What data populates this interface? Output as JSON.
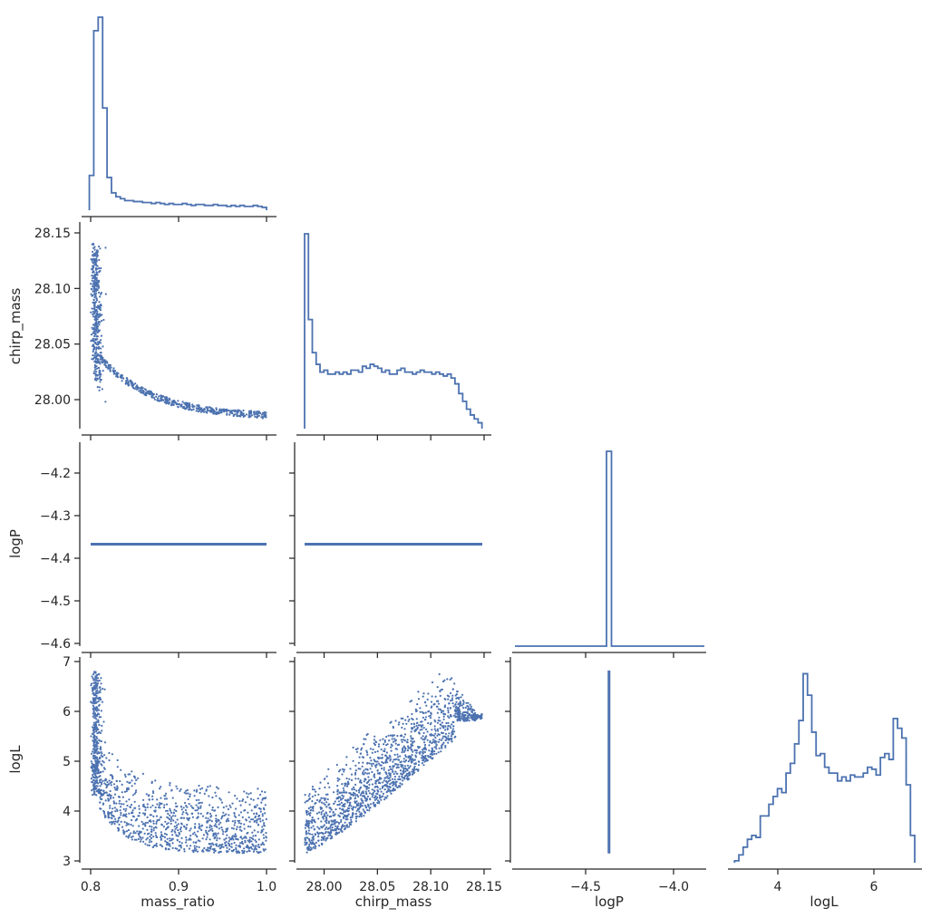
{
  "chart_data": {
    "type": "scatter",
    "layout": "corner-plot",
    "color": "#4c72b0",
    "variables": [
      "mass_ratio",
      "chirp_mass",
      "logP",
      "logL"
    ],
    "axis_labels": {
      "mass_ratio": "mass_ratio",
      "chirp_mass": "chirp_mass",
      "logP": "logP",
      "logL": "logL"
    },
    "ranges": {
      "mass_ratio": [
        0.79,
        1.01
      ],
      "chirp_mass": [
        27.973,
        28.152
      ],
      "logP": [
        -4.612,
        -4.18
      ],
      "logL": [
        2.95,
        7.0
      ]
    },
    "hist_ranges": {
      "logP": [
        -4.92,
        -3.82
      ]
    },
    "ticks": {
      "mass_ratio": {
        "values": [
          0.8,
          0.9,
          1.0
        ],
        "labels": [
          "0.8",
          "0.9",
          "1.0"
        ]
      },
      "chirp_mass": {
        "values": [
          28.0,
          28.05,
          28.1,
          28.15
        ],
        "labels": [
          "28.00",
          "28.05",
          "28.10",
          "28.15"
        ]
      },
      "logP_y": {
        "values": [
          -4.2,
          -4.3,
          -4.4,
          -4.5,
          -4.6
        ],
        "labels": [
          "−4.2",
          "−4.3",
          "−4.4",
          "−4.5",
          "−4.6"
        ]
      },
      "logP_x": {
        "values": [
          -4.5,
          -4.0
        ],
        "labels": [
          "−4.5",
          "−4.0"
        ]
      },
      "logL": {
        "values": [
          3,
          4,
          5,
          6,
          7
        ],
        "labels": [
          "3",
          "4",
          "5",
          "6",
          "7"
        ]
      },
      "logL_x": {
        "values": [
          4,
          6
        ],
        "labels": [
          "4",
          "6"
        ]
      },
      "chirp_mass_y": {
        "values": [
          28.0,
          28.05,
          28.1,
          28.15
        ],
        "labels": [
          "28.00",
          "28.05",
          "28.10",
          "28.15"
        ]
      }
    },
    "diagonal_histograms": {
      "mass_ratio": {
        "bin_edges_range": [
          0.8,
          1.0
        ],
        "counts": [
          0.18,
          0.93,
          1.0,
          0.53,
          0.17,
          0.09,
          0.07,
          0.06,
          0.05,
          0.05,
          0.045,
          0.045,
          0.04,
          0.04,
          0.035,
          0.04,
          0.035,
          0.03,
          0.035,
          0.03,
          0.03,
          0.035,
          0.03,
          0.025,
          0.03,
          0.03,
          0.025,
          0.025,
          0.03,
          0.025,
          0.025,
          0.02,
          0.025,
          0.02,
          0.025,
          0.02,
          0.02,
          0.025,
          0.02,
          0.015
        ]
      },
      "chirp_mass": {
        "bin_edges_range": [
          27.982,
          28.148
        ],
        "counts": [
          1.0,
          0.56,
          0.39,
          0.33,
          0.29,
          0.3,
          0.28,
          0.28,
          0.29,
          0.28,
          0.29,
          0.28,
          0.3,
          0.3,
          0.29,
          0.32,
          0.31,
          0.33,
          0.32,
          0.31,
          0.29,
          0.3,
          0.28,
          0.28,
          0.3,
          0.31,
          0.29,
          0.29,
          0.28,
          0.29,
          0.3,
          0.29,
          0.29,
          0.28,
          0.29,
          0.28,
          0.27,
          0.28,
          0.26,
          0.23,
          0.18,
          0.14,
          0.1,
          0.07,
          0.05,
          0.03
        ]
      },
      "logP": {
        "peak_value": -4.367,
        "peak_height": 1.0
      },
      "logL": {
        "bin_edges_range": [
          3.1,
          6.85
        ],
        "counts": [
          0.01,
          0.04,
          0.08,
          0.12,
          0.14,
          0.13,
          0.24,
          0.24,
          0.3,
          0.34,
          0.38,
          0.36,
          0.46,
          0.51,
          0.61,
          0.73,
          0.97,
          0.86,
          0.67,
          0.55,
          0.56,
          0.49,
          0.46,
          0.46,
          0.42,
          0.44,
          0.42,
          0.45,
          0.44,
          0.44,
          0.46,
          0.49,
          0.48,
          0.45,
          0.54,
          0.56,
          0.53,
          0.74,
          0.69,
          0.64,
          0.4,
          0.14
        ]
      }
    },
    "relations": {
      "logP_constant": -4.367,
      "description_points": "posterior samples"
    }
  }
}
